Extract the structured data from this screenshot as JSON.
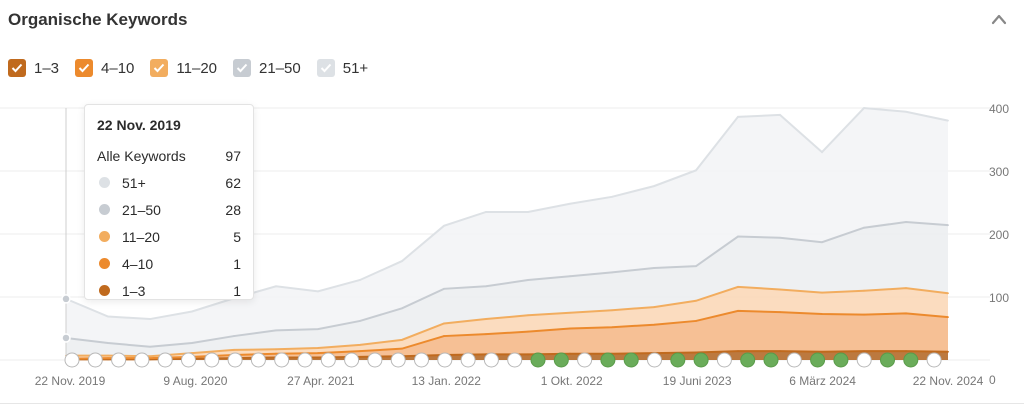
{
  "header": {
    "title": "Organische Keywords"
  },
  "legend": [
    {
      "label": "1–3",
      "color": "#c06a1e"
    },
    {
      "label": "4–10",
      "color": "#ec8a2d"
    },
    {
      "label": "11–20",
      "color": "#f2ad5f"
    },
    {
      "label": "21–50",
      "color": "#c7ccd2"
    },
    {
      "label": "51+",
      "color": "#dde1e5"
    }
  ],
  "tooltip": {
    "date": "22 Nov. 2019",
    "total_label": "Alle Keywords",
    "total_value": "97",
    "rows": [
      {
        "label": "51+",
        "value": "62",
        "color": "#dde1e5"
      },
      {
        "label": "21–50",
        "value": "28",
        "color": "#c7ccd2"
      },
      {
        "label": "11–20",
        "value": "5",
        "color": "#f2ad5f"
      },
      {
        "label": "4–10",
        "value": "1",
        "color": "#ec8a2d"
      },
      {
        "label": "1–3",
        "value": "1",
        "color": "#c06a1e"
      }
    ]
  },
  "chart_data": {
    "type": "area",
    "stacked": true,
    "title": "Organische Keywords",
    "x_tick_labels": [
      "22 Nov. 2019",
      "9 Aug. 2020",
      "27 Apr. 2021",
      "13 Jan. 2022",
      "1 Okt. 2022",
      "19 Juni 2023",
      "6 März 2024",
      "22 Nov. 2024"
    ],
    "y_tick_labels": [
      "0",
      "100",
      "200",
      "300",
      "400"
    ],
    "ylim": [
      0,
      400
    ],
    "y_axis_side": "right",
    "grid": true,
    "x": [
      "2019-11",
      "2020-02",
      "2020-05",
      "2020-08",
      "2020-11",
      "2021-01",
      "2021-04",
      "2021-07",
      "2021-10",
      "2022-01",
      "2022-04",
      "2022-07",
      "2022-10",
      "2023-01",
      "2023-04",
      "2023-06",
      "2023-09",
      "2023-12",
      "2024-03",
      "2024-06",
      "2024-09",
      "2024-11"
    ],
    "series": [
      {
        "name": "1–3",
        "color": "#c06a1e",
        "values": [
          1,
          1,
          1,
          2,
          3,
          4,
          4,
          5,
          6,
          8,
          9,
          9,
          10,
          10,
          11,
          12,
          14,
          14,
          13,
          14,
          14,
          13
        ]
      },
      {
        "name": "4–10",
        "color": "#ec8a2d",
        "values": [
          1,
          2,
          2,
          3,
          5,
          6,
          7,
          9,
          12,
          30,
          32,
          36,
          40,
          42,
          45,
          50,
          64,
          62,
          60,
          58,
          60,
          55
        ]
      },
      {
        "name": "11–20",
        "color": "#f2ad5f",
        "values": [
          5,
          4,
          3,
          6,
          8,
          7,
          8,
          10,
          14,
          20,
          24,
          26,
          25,
          27,
          28,
          32,
          38,
          36,
          34,
          38,
          40,
          38
        ]
      },
      {
        "name": "21–50",
        "color": "#c7ccd2",
        "values": [
          28,
          20,
          15,
          16,
          22,
          30,
          30,
          38,
          50,
          55,
          52,
          56,
          58,
          60,
          62,
          55,
          80,
          82,
          80,
          100,
          105,
          108
        ]
      },
      {
        "name": "51+",
        "color": "#dde1e5",
        "values": [
          62,
          42,
          44,
          50,
          60,
          70,
          60,
          65,
          75,
          100,
          118,
          108,
          115,
          120,
          130,
          152,
          190,
          195,
          143,
          190,
          175,
          166
        ]
      }
    ]
  }
}
